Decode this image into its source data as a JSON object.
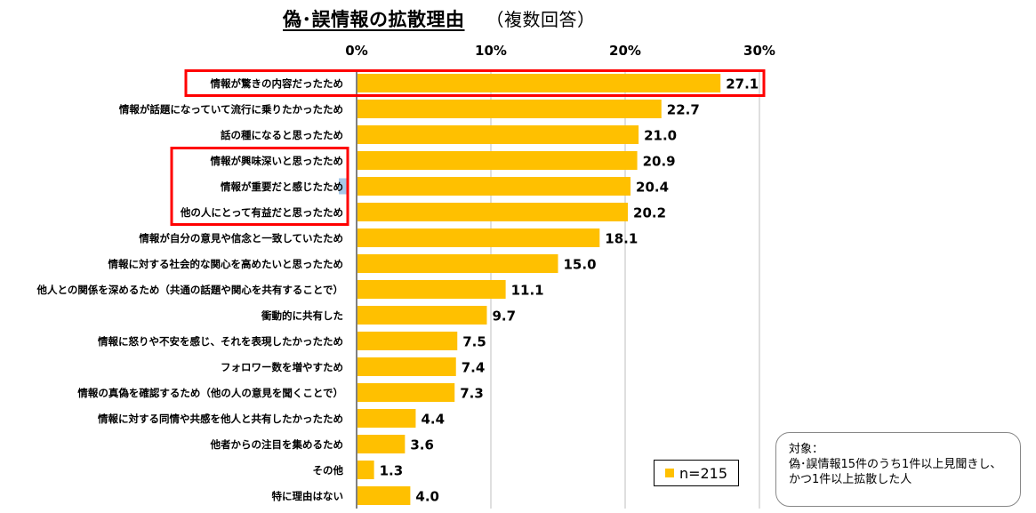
{
  "title": "偽･誤情報の拡散理由",
  "subtitle": "（複数回答）",
  "legend_label": "n=215",
  "note": {
    "heading": "対象：",
    "lines": [
      "偽･誤情報15件のうち1件以上見聞きし、",
      "かつ1件以上拡散した人"
    ]
  },
  "colors": {
    "bar": "#FFC000",
    "highlight": "#FF0000",
    "grid": "#BFBFBF",
    "selection": "#9DC3E6"
  },
  "chart_data": {
    "type": "bar",
    "orientation": "horizontal",
    "xlim": [
      0,
      30
    ],
    "x_ticks": [
      "0%",
      "10%",
      "20%",
      "30%"
    ],
    "x_tick_values": [
      0,
      10,
      20,
      30
    ],
    "grid": true,
    "categories": [
      "情報が驚きの内容だったため",
      "情報が話題になっていて流行に乗りたかったため",
      "話の種になると思ったため",
      "情報が興味深いと思ったため",
      "情報が重要だと感じたため",
      "他の人にとって有益だと思ったため",
      "情報が自分の意見や信念と一致していたため",
      "情報に対する社会的な関心を高めたいと思ったため",
      "他人との関係を深めるため（共通の話題や関心を共有することで）",
      "衝動的に共有した",
      "情報に怒りや不安を感じ、それを表現したかったため",
      "フォロワー数を増やすため",
      "情報の真偽を確認するため（他の人の意見を聞くことで）",
      "情報に対する同情や共感を他人と共有したかったため",
      "他者からの注目を集めるため",
      "その他",
      "特に理由はない"
    ],
    "values": [
      27.1,
      22.7,
      21.0,
      20.9,
      20.4,
      20.2,
      18.1,
      15.0,
      11.1,
      9.7,
      7.5,
      7.4,
      7.3,
      4.4,
      3.6,
      1.3,
      4.0
    ],
    "value_labels": [
      "27.1",
      "22.7",
      "21.0",
      "20.9",
      "20.4",
      "20.2",
      "18.1",
      "15.0",
      "11.1",
      "9.7",
      "7.5",
      "7.4",
      "7.3",
      "4.4",
      "3.6",
      "1.3",
      "4.0"
    ],
    "highlight_groups": [
      [
        0
      ],
      [
        3,
        4,
        5
      ]
    ]
  }
}
